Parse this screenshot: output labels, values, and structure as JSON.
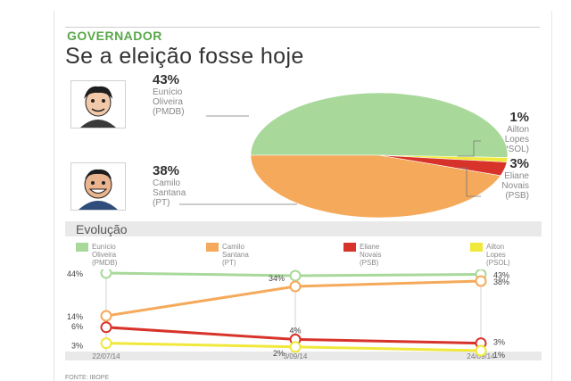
{
  "header": {
    "section_label": "GOVERNADOR",
    "headline": "Se a eleição fosse hoje"
  },
  "candidates": [
    {
      "pct": "43%",
      "name_lines": [
        "Eunício",
        "Oliveira",
        "(PMDB)"
      ],
      "color": "#a8d99a"
    },
    {
      "pct": "38%",
      "name_lines": [
        "Camilo",
        "Santana",
        "(PT)"
      ],
      "color": "#f5a95a"
    },
    {
      "pct": "3%",
      "name_lines": [
        "Eliane",
        "Novais",
        "(PSB)"
      ],
      "color": "#d8332b"
    },
    {
      "pct": "1%",
      "name_lines": [
        "Ailton",
        "Lopes",
        "(PSOL)"
      ],
      "color": "#f0e83a"
    }
  ],
  "evolution": {
    "title": "Evolução",
    "legend": [
      {
        "lines": [
          "Eunício",
          "Oliveira",
          "(PMDB)"
        ],
        "color": "#a8d99a"
      },
      {
        "lines": [
          "Camilo",
          "Santana",
          "(PT)"
        ],
        "color": "#f5a95a"
      },
      {
        "lines": [
          "Eliane",
          "Novais",
          "(PSB)"
        ],
        "color": "#d8332b"
      },
      {
        "lines": [
          "Ailton",
          "Lopes",
          "(PSOL)"
        ],
        "color": "#f0e83a"
      }
    ],
    "dates": [
      "22/07/14",
      "3/09/14",
      "24/09/14"
    ]
  },
  "credit": "FONTE: IBOPE",
  "chart_data": [
    {
      "type": "pie",
      "title": "Se a eleição fosse hoje",
      "categories": [
        "Eunício Oliveira (PMDB)",
        "Camilo Santana (PT)",
        "Eliane Novais (PSB)",
        "Ailton Lopes (PSOL)"
      ],
      "values": [
        43,
        38,
        3,
        1
      ],
      "colors": [
        "#a8d99a",
        "#f5a95a",
        "#d8332b",
        "#f0e83a"
      ]
    },
    {
      "type": "line",
      "title": "Evolução",
      "x": [
        "22/07/14",
        "3/09/14",
        "24/09/14"
      ],
      "ylim": [
        0,
        50
      ],
      "series": [
        {
          "name": "Eunício Oliveira (PMDB)",
          "values": [
            44,
            42,
            43
          ],
          "labels": [
            "44%",
            "42%",
            "43%"
          ],
          "color": "#a8d99a"
        },
        {
          "name": "Camilo Santana (PT)",
          "values": [
            14,
            34,
            38
          ],
          "labels": [
            "14%",
            "34%",
            "38%"
          ],
          "color": "#f5a95a"
        },
        {
          "name": "Eliane Novais (PSB)",
          "values": [
            6,
            4,
            3
          ],
          "labels": [
            "6%",
            "4%",
            "3%"
          ],
          "color": "#d8332b"
        },
        {
          "name": "Ailton Lopes (PSOL)",
          "values": [
            3,
            2,
            1
          ],
          "labels": [
            "3%",
            "2%",
            "1%"
          ],
          "color": "#f0e83a"
        }
      ]
    }
  ]
}
